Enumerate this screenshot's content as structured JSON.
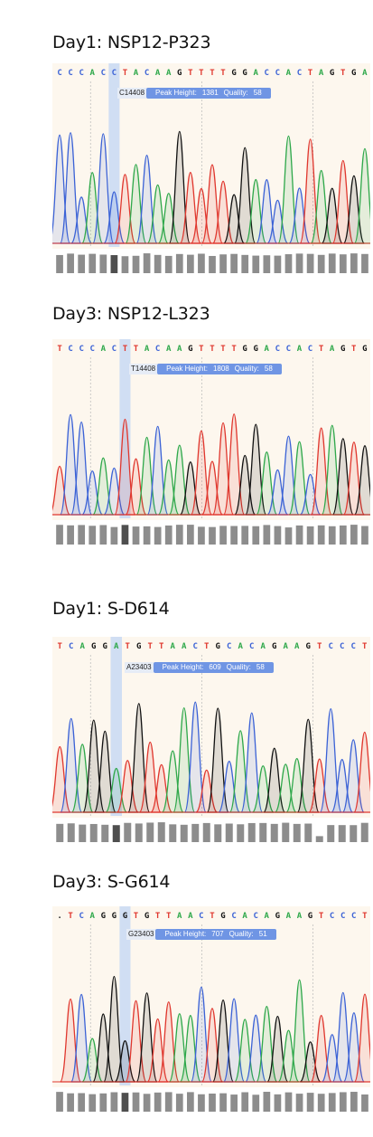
{
  "colors": {
    "A": "#2ea84a",
    "C": "#3b62d6",
    "G": "#111111",
    "T": "#e0372e",
    "bg": "#fdf7ee",
    "highlight": "#bcd3f5",
    "tag": "#6f95e4",
    "qual": "#8d8d8d",
    "qual_dark": "#4f4f4f"
  },
  "panels": [
    {
      "title": "Day1: NSP12-P323",
      "sequence": "CCCACCTACAAGTTTTGGACCACTAGTGA",
      "highlight_index": 5,
      "call": {
        "base": "C14408",
        "height_label": "Peak Height:",
        "height": "1381",
        "quality_label": "Quality:",
        "quality": "58"
      }
    },
    {
      "title": "Day3: NSP12-L323",
      "sequence": "TCCCACTTACAAGTTTTGGACCACTAGTG",
      "highlight_index": 6,
      "call": {
        "base": "T14408",
        "height_label": "Peak Height:",
        "height": "1808",
        "quality_label": "Quality:",
        "quality": "58"
      }
    },
    {
      "title": "Day1: S-D614",
      "sequence": "TCAGGATGTTAACTGCACAGAAGTCCCT",
      "highlight_index": 5,
      "call": {
        "base": "A23403",
        "height_label": "Peak Height:",
        "height": "609",
        "quality_label": "Quality:",
        "quality": "58"
      }
    },
    {
      "title": "Day3: S-G614",
      "sequence": ".TCAGGGTGTTAACTGCACAGAAGTCCCT",
      "highlight_index": 6,
      "call": {
        "base": "G23403",
        "height_label": "Peak Height:",
        "height": "707",
        "quality_label": "Quality:",
        "quality": "51"
      }
    }
  ]
}
